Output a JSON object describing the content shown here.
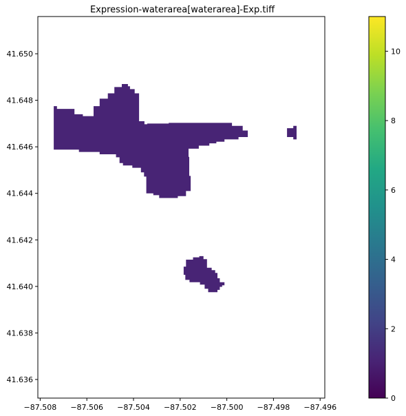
{
  "title": "Expression-waterarea[waterarea]-Exp.tiff",
  "colors": {
    "background": "#ffffff",
    "region_fill": "#482475",
    "colormap": [
      "#440154",
      "#482475",
      "#414487",
      "#355f8d",
      "#2a788e",
      "#21918c",
      "#22a884",
      "#44bf70",
      "#7ad151",
      "#bddf26",
      "#fde725"
    ]
  },
  "chart_data": {
    "type": "heatmap",
    "title": "Expression-waterarea[waterarea]-Exp.tiff",
    "xlabel": "",
    "ylabel": "",
    "xlim": [
      -87.5081,
      -87.4958
    ],
    "ylim": [
      41.6352,
      41.6516
    ],
    "x_ticks": [
      -87.508,
      -87.506,
      -87.504,
      -87.502,
      -87.5,
      -87.498,
      -87.496
    ],
    "x_tick_labels": [
      "−87.508",
      "−87.506",
      "−87.504",
      "−87.502",
      "−87.500",
      "−87.498",
      "−87.496"
    ],
    "y_ticks": [
      41.636,
      41.638,
      41.64,
      41.642,
      41.644,
      41.646,
      41.648,
      41.65
    ],
    "y_tick_labels": [
      "41.636",
      "41.638",
      "41.640",
      "41.642",
      "41.644",
      "41.646",
      "41.648",
      "41.650"
    ],
    "grid": false,
    "colorbar": {
      "range": [
        0,
        11
      ],
      "ticks": [
        0,
        2,
        4,
        6,
        8,
        10
      ],
      "tick_labels": [
        "0",
        "2",
        "4",
        "6",
        "8",
        "10"
      ],
      "placement": "right"
    },
    "regions": [
      {
        "value": 1,
        "outline": [
          [
            -87.50742,
            41.64588
          ],
          [
            -87.50742,
            41.64775
          ],
          [
            -87.50728,
            41.64775
          ],
          [
            -87.50728,
            41.64763
          ],
          [
            -87.50653,
            41.64763
          ],
          [
            -87.50653,
            41.6474
          ],
          [
            -87.50617,
            41.6474
          ],
          [
            -87.50617,
            41.64732
          ],
          [
            -87.50571,
            41.64732
          ],
          [
            -87.50571,
            41.64775
          ],
          [
            -87.50545,
            41.64775
          ],
          [
            -87.50545,
            41.64807
          ],
          [
            -87.5051,
            41.64807
          ],
          [
            -87.5051,
            41.6483
          ],
          [
            -87.50482,
            41.6483
          ],
          [
            -87.50482,
            41.64857
          ],
          [
            -87.5045,
            41.64857
          ],
          [
            -87.5045,
            41.6487
          ],
          [
            -87.50424,
            41.6487
          ],
          [
            -87.50424,
            41.6486
          ],
          [
            -87.50415,
            41.6486
          ],
          [
            -87.50415,
            41.64848
          ],
          [
            -87.50395,
            41.64848
          ],
          [
            -87.50395,
            41.6483
          ],
          [
            -87.50376,
            41.6483
          ],
          [
            -87.50376,
            41.6471
          ],
          [
            -87.50353,
            41.6471
          ],
          [
            -87.50353,
            41.64697
          ],
          [
            -87.50341,
            41.64697
          ],
          [
            -87.50341,
            41.647
          ],
          [
            -87.50249,
            41.647
          ],
          [
            -87.50249,
            41.64703
          ],
          [
            -87.49978,
            41.64703
          ],
          [
            -87.49978,
            41.6469
          ],
          [
            -87.49932,
            41.6469
          ],
          [
            -87.49932,
            41.6467
          ],
          [
            -87.4991,
            41.6467
          ],
          [
            -87.4991,
            41.64642
          ],
          [
            -87.4995,
            41.64642
          ],
          [
            -87.4995,
            41.64632
          ],
          [
            -87.5001,
            41.64632
          ],
          [
            -87.5001,
            41.64622
          ],
          [
            -87.50045,
            41.64622
          ],
          [
            -87.50045,
            41.64615
          ],
          [
            -87.50075,
            41.64615
          ],
          [
            -87.50075,
            41.64605
          ],
          [
            -87.5012,
            41.64605
          ],
          [
            -87.5012,
            41.64592
          ],
          [
            -87.50164,
            41.64592
          ],
          [
            -87.50164,
            41.64557
          ],
          [
            -87.50161,
            41.64557
          ],
          [
            -87.50161,
            41.64475
          ],
          [
            -87.50155,
            41.64475
          ],
          [
            -87.50155,
            41.6441
          ],
          [
            -87.50175,
            41.6441
          ],
          [
            -87.50175,
            41.64388
          ],
          [
            -87.5021,
            41.64388
          ],
          [
            -87.5021,
            41.6438
          ],
          [
            -87.5029,
            41.6438
          ],
          [
            -87.5029,
            41.64392
          ],
          [
            -87.50315,
            41.64392
          ],
          [
            -87.50315,
            41.644
          ],
          [
            -87.50345,
            41.644
          ],
          [
            -87.50345,
            41.64472
          ],
          [
            -87.50355,
            41.64472
          ],
          [
            -87.50355,
            41.6449
          ],
          [
            -87.50368,
            41.6449
          ],
          [
            -87.50368,
            41.6451
          ],
          [
            -87.50405,
            41.6451
          ],
          [
            -87.50405,
            41.6452
          ],
          [
            -87.50445,
            41.6452
          ],
          [
            -87.50445,
            41.6453
          ],
          [
            -87.5046,
            41.6453
          ],
          [
            -87.5046,
            41.64555
          ],
          [
            -87.50475,
            41.64555
          ],
          [
            -87.50475,
            41.64568
          ],
          [
            -87.50545,
            41.64568
          ],
          [
            -87.50545,
            41.64578
          ],
          [
            -87.50634,
            41.64578
          ],
          [
            -87.50634,
            41.64588
          ]
        ]
      },
      {
        "value": 1,
        "outline": [
          [
            -87.49742,
            41.64642
          ],
          [
            -87.49742,
            41.6468
          ],
          [
            -87.49715,
            41.6468
          ],
          [
            -87.49715,
            41.6469
          ],
          [
            -87.49701,
            41.6469
          ],
          [
            -87.49701,
            41.64632
          ],
          [
            -87.49715,
            41.64632
          ],
          [
            -87.49715,
            41.64642
          ]
        ]
      },
      {
        "value": 1,
        "outline": [
          [
            -87.50185,
            41.6405
          ],
          [
            -87.50185,
            41.64085
          ],
          [
            -87.50175,
            41.64085
          ],
          [
            -87.50175,
            41.64115
          ],
          [
            -87.50145,
            41.64115
          ],
          [
            -87.50145,
            41.64125
          ],
          [
            -87.50118,
            41.64125
          ],
          [
            -87.50118,
            41.6413
          ],
          [
            -87.501,
            41.6413
          ],
          [
            -87.501,
            41.64117
          ],
          [
            -87.50085,
            41.64117
          ],
          [
            -87.50085,
            41.6408
          ],
          [
            -87.50065,
            41.6408
          ],
          [
            -87.50065,
            41.6407
          ],
          [
            -87.5005,
            41.6407
          ],
          [
            -87.5005,
            41.64058
          ],
          [
            -87.5004,
            41.64058
          ],
          [
            -87.5004,
            41.64035
          ],
          [
            -87.5003,
            41.64035
          ],
          [
            -87.5003,
            41.64018
          ],
          [
            -87.5001,
            41.64018
          ],
          [
            -87.5001,
            41.64005
          ],
          [
            -87.5002,
            41.64005
          ],
          [
            -87.5002,
            41.63998
          ],
          [
            -87.5003,
            41.63998
          ],
          [
            -87.5003,
            41.63985
          ],
          [
            -87.5004,
            41.63985
          ],
          [
            -87.5004,
            41.63975
          ],
          [
            -87.5008,
            41.63975
          ],
          [
            -87.5008,
            41.6399
          ],
          [
            -87.50095,
            41.6399
          ],
          [
            -87.50095,
            41.64008
          ],
          [
            -87.50115,
            41.64008
          ],
          [
            -87.50115,
            41.64018
          ],
          [
            -87.5016,
            41.64018
          ],
          [
            -87.5016,
            41.64028
          ],
          [
            -87.50178,
            41.64028
          ],
          [
            -87.50178,
            41.6405
          ]
        ]
      }
    ]
  }
}
